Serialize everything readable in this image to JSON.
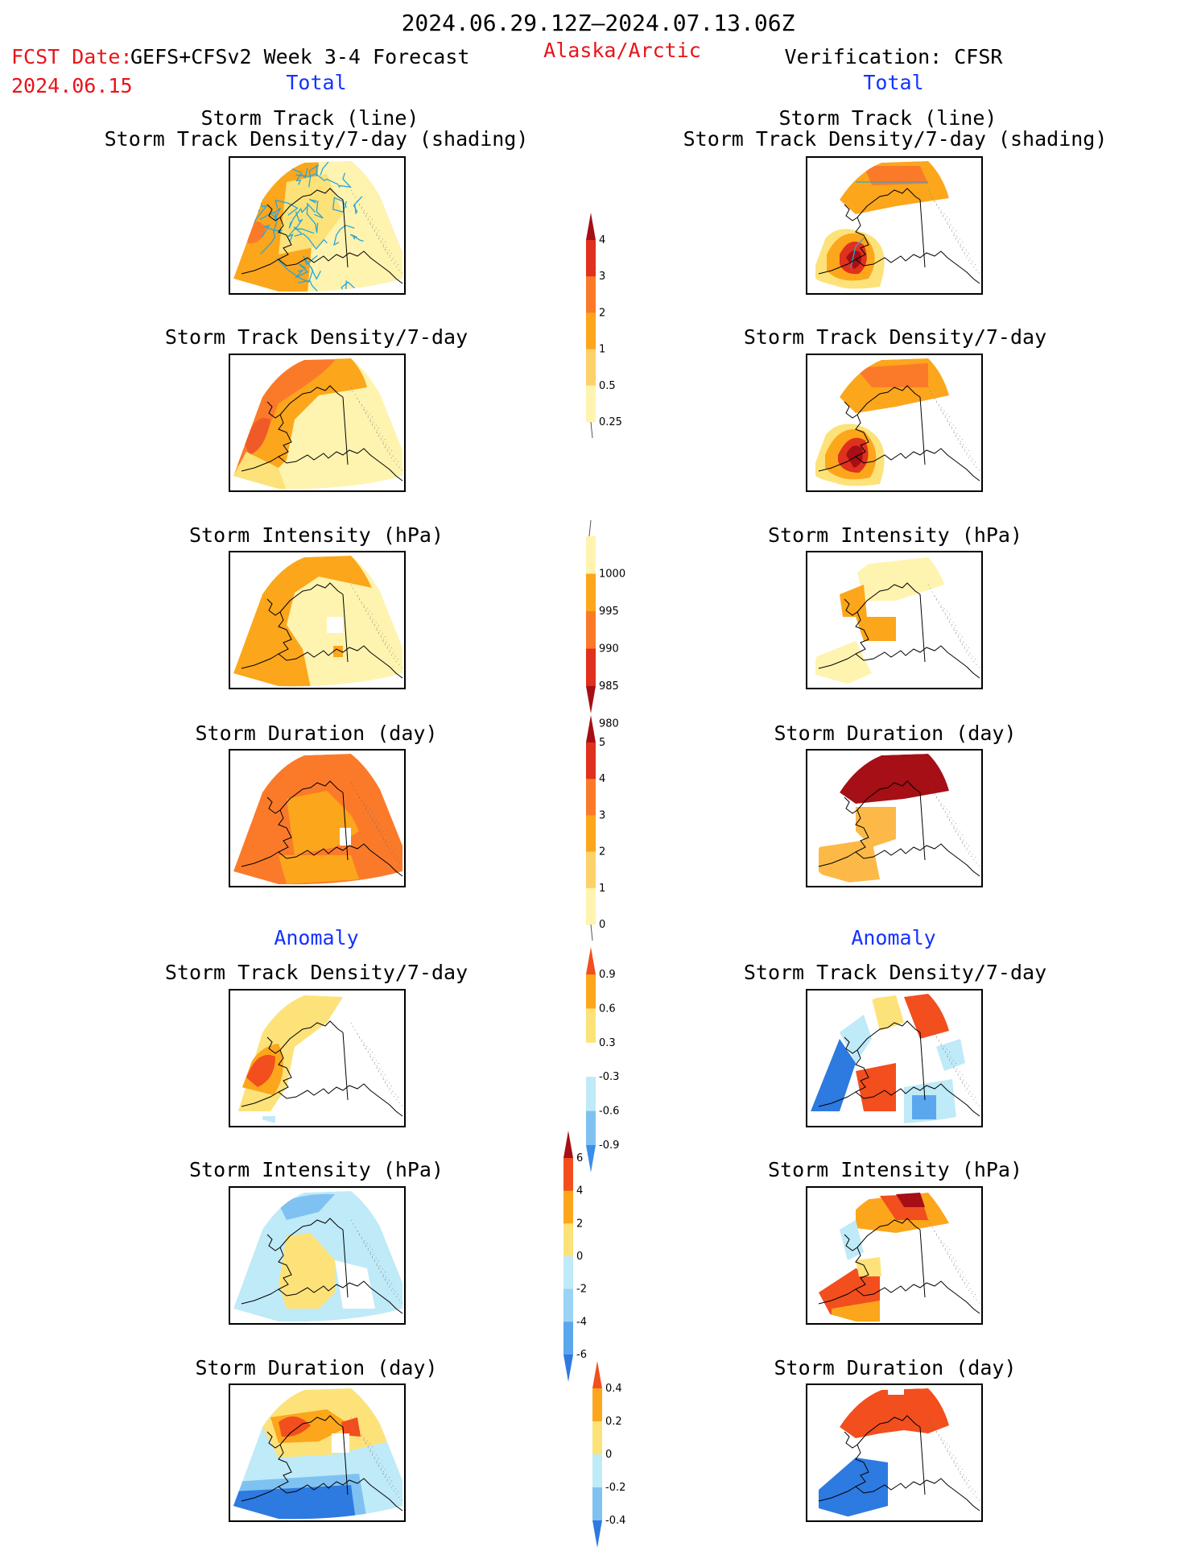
{
  "header": {
    "date_range": "2024.06.29.12Z–2024.07.13.06Z",
    "fcst_label": "FCST Date:",
    "fcst_model": "GEFS+CFSv2 Week 3-4 Forecast",
    "fcst_date": "2024.06.15",
    "region": "Alaska/Arctic",
    "verification": "Verification: CFSR"
  },
  "sections": {
    "total_left": "Total",
    "total_right": "Total",
    "anomaly_left": "Anomaly",
    "anomaly_right": "Anomaly"
  },
  "panel_titles": {
    "track_line": "Storm Track (line)",
    "track_density_shading": "Storm Track Density/7-day (shading)",
    "track_density": "Storm Track Density/7-day",
    "intensity": "Storm Intensity (hPa)",
    "duration": "Storm Duration (day)"
  },
  "colorbars": [
    {
      "id": "density",
      "labels": [
        "4",
        "3",
        "2",
        "1",
        "0.5",
        "0.25"
      ],
      "colors": [
        "#a50f15",
        "#e0301e",
        "#fb7a2a",
        "#fca61c",
        "#fdd26a",
        "#fff3b0"
      ],
      "arrow": "top"
    },
    {
      "id": "intensity",
      "labels": [
        "1000",
        "995",
        "990",
        "985",
        "980"
      ],
      "colors": [
        "#fff3b0",
        "#fca61c",
        "#fb7a2a",
        "#e0301e",
        "#a50f15"
      ],
      "arrow": "bottom"
    },
    {
      "id": "duration",
      "labels": [
        "5",
        "4",
        "3",
        "2",
        "1",
        "0"
      ],
      "colors": [
        "#a50f15",
        "#e0301e",
        "#fb7a2a",
        "#fca61c",
        "#fdd26a",
        "#fff3b0"
      ],
      "arrow": "top"
    },
    {
      "id": "density_anom",
      "labels": [
        "0.9",
        "0.6",
        "0.3",
        "-0.3",
        "-0.6",
        "-0.9"
      ],
      "colors": [
        "#f24e1e",
        "#fca61c",
        "#fde27a",
        "#ffffff",
        "#bfeaf7",
        "#7fc2f2",
        "#3b8ee8"
      ],
      "arrow": "both"
    },
    {
      "id": "intensity_anom",
      "labels": [
        "6",
        "4",
        "2",
        "0",
        "-2",
        "-4",
        "-6"
      ],
      "colors": [
        "#a50f15",
        "#f24e1e",
        "#fca61c",
        "#fde27a",
        "#bfeaf7",
        "#9ad3f5",
        "#5aa7ee",
        "#2d7ae0"
      ],
      "arrow": "both"
    },
    {
      "id": "duration_anom",
      "labels": [
        "0.4",
        "0.2",
        "0",
        "-0.2",
        "-0.4"
      ],
      "colors": [
        "#f24e1e",
        "#fca61c",
        "#fde27a",
        "#bfeaf7",
        "#7fc2f2",
        "#2d7ae0"
      ],
      "arrow": "both"
    }
  ]
}
